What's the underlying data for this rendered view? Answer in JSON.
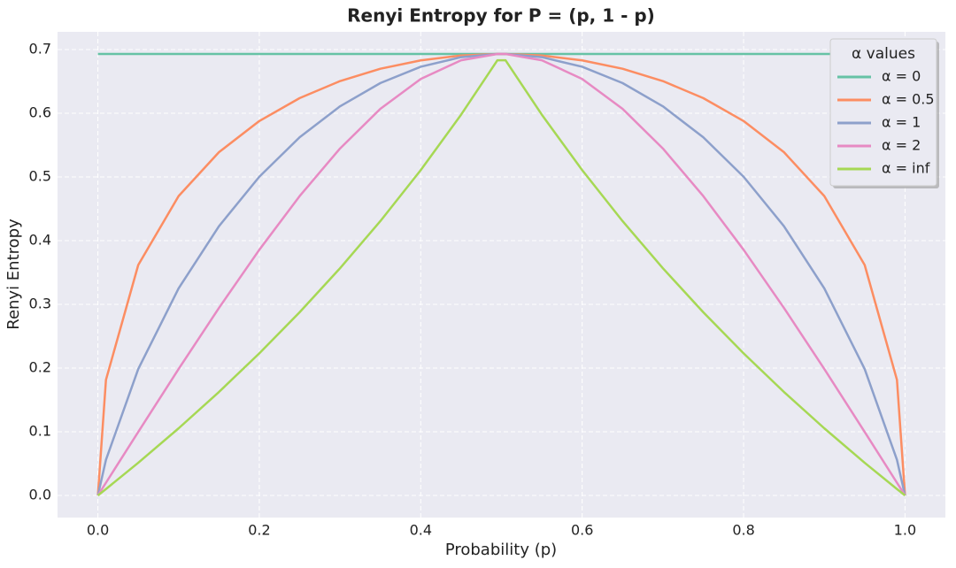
{
  "chart_data": {
    "type": "line",
    "title": "Renyi Entropy for P = (p, 1 - p)",
    "x_label": "Probability (p)",
    "y_label": "Renyi Entropy",
    "x": [
      0,
      0.01,
      0.05,
      0.1,
      0.15,
      0.2,
      0.25,
      0.3,
      0.35,
      0.4,
      0.45,
      0.495,
      0.505,
      0.55,
      0.6,
      0.65,
      0.7,
      0.75,
      0.8,
      0.85,
      0.9,
      0.95,
      0.99,
      1
    ],
    "series": [
      {
        "name": "α = 0",
        "color": "#66c2a5",
        "values": [
          0.6931,
          0.6931,
          0.6931,
          0.6931,
          0.6931,
          0.6931,
          0.6931,
          0.6931,
          0.6931,
          0.6931,
          0.6931,
          0.6931,
          0.6931,
          0.6931,
          0.6931,
          0.6931,
          0.6931,
          0.6931,
          0.6931,
          0.6931,
          0.6931,
          0.6931,
          0.6931,
          0.6931
        ]
      },
      {
        "name": "α = 0.5",
        "color": "#fc8d62",
        "values": [
          0,
          0.1815,
          0.3618,
          0.47,
          0.5389,
          0.5878,
          0.6238,
          0.6505,
          0.6699,
          0.683,
          0.6907,
          0.6931,
          0.6931,
          0.6907,
          0.683,
          0.6699,
          0.6505,
          0.6238,
          0.5878,
          0.5389,
          0.47,
          0.3618,
          0.1815,
          0
        ]
      },
      {
        "name": "α = 1",
        "color": "#8da0cb",
        "values": [
          0,
          0.056,
          0.1985,
          0.3251,
          0.4227,
          0.5004,
          0.5623,
          0.6109,
          0.6474,
          0.673,
          0.6881,
          0.6931,
          0.6931,
          0.6881,
          0.673,
          0.6474,
          0.6109,
          0.5623,
          0.5004,
          0.4227,
          0.3251,
          0.1985,
          0.056,
          0
        ]
      },
      {
        "name": "α = 2",
        "color": "#e78ac3",
        "values": [
          0,
          0.02,
          0.0998,
          0.1985,
          0.2944,
          0.3857,
          0.47,
          0.5447,
          0.607,
          0.6539,
          0.6832,
          0.693,
          0.693,
          0.6832,
          0.6539,
          0.607,
          0.5447,
          0.47,
          0.3857,
          0.2944,
          0.1985,
          0.0998,
          0.02,
          0
        ]
      },
      {
        "name": "α = inf",
        "color": "#a6d854",
        "values": [
          0,
          0.0101,
          0.0513,
          0.1054,
          0.1625,
          0.2231,
          0.2877,
          0.3567,
          0.4308,
          0.5108,
          0.5978,
          0.6832,
          0.6832,
          0.5978,
          0.5108,
          0.4308,
          0.3567,
          0.2877,
          0.2231,
          0.1625,
          0.1054,
          0.0513,
          0.0101,
          0
        ]
      }
    ],
    "legend_title": "α values",
    "legend": "upper right",
    "grid": true,
    "xlim": [
      -0.05,
      1.05
    ],
    "xticks": [
      {
        "value": 0,
        "label": "0.0"
      },
      0.2,
      0.4,
      0.6,
      0.8,
      {
        "value": 1,
        "label": "1.0"
      }
    ],
    "ylim": [
      -0.0347,
      0.7278
    ],
    "yticks": [
      {
        "value": 0,
        "label": "0.0"
      },
      0.1,
      0.2,
      0.3,
      0.4,
      0.5,
      0.6,
      0.7
    ]
  }
}
